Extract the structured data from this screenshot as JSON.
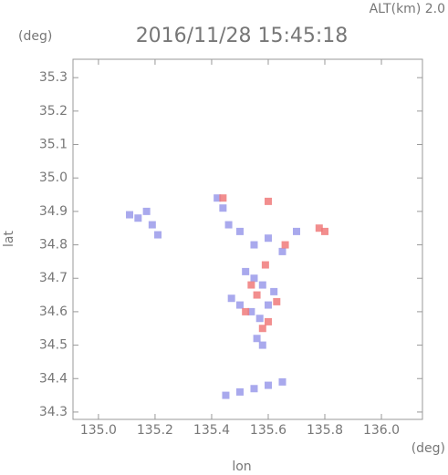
{
  "chart_data": {
    "type": "scatter",
    "title": "2016/11/28 15:45:18",
    "subtitle": "ALT(km) 2.0",
    "y_unit": "(deg)",
    "x_unit": "(deg)",
    "x_label": "lon",
    "y_label": "lat",
    "xlim": [
      134.91,
      136.145
    ],
    "ylim": [
      34.278,
      35.355
    ],
    "xticks": [
      {
        "value": 135.0,
        "label": "135.0"
      },
      135.2,
      135.4,
      135.6,
      135.8,
      {
        "value": 136.0,
        "label": "136.0"
      }
    ],
    "yticks": [
      34.3,
      34.4,
      34.5,
      34.6,
      34.7,
      34.8,
      34.9,
      {
        "value": 35.0,
        "label": "35.0"
      },
      35.1,
      35.2,
      35.3
    ],
    "series": [
      {
        "color": "#9a9aea",
        "x": [
          135.11,
          135.14,
          135.17,
          135.19,
          135.21,
          135.42,
          135.44,
          135.46,
          135.5,
          135.55,
          135.6,
          135.65,
          135.7,
          135.52,
          135.55,
          135.58,
          135.62,
          135.5,
          135.54,
          135.57,
          135.6,
          135.56,
          135.58,
          135.45,
          135.5,
          135.55,
          135.6,
          135.65,
          135.47
        ],
        "y": [
          34.89,
          34.88,
          34.9,
          34.86,
          34.83,
          34.94,
          34.91,
          34.86,
          34.84,
          34.8,
          34.82,
          34.78,
          34.84,
          34.72,
          34.7,
          34.68,
          34.66,
          34.62,
          34.6,
          34.58,
          34.62,
          34.52,
          34.5,
          34.35,
          34.36,
          34.37,
          34.38,
          34.39,
          34.64
        ]
      },
      {
        "color": "#f07a7a",
        "x": [
          135.44,
          135.6,
          135.66,
          135.78,
          135.52,
          135.56,
          135.6,
          135.54,
          135.58,
          135.63,
          135.8,
          135.59
        ],
        "y": [
          34.94,
          34.93,
          34.8,
          34.85,
          34.6,
          34.65,
          34.57,
          34.68,
          34.55,
          34.63,
          34.84,
          34.74
        ]
      }
    ]
  }
}
